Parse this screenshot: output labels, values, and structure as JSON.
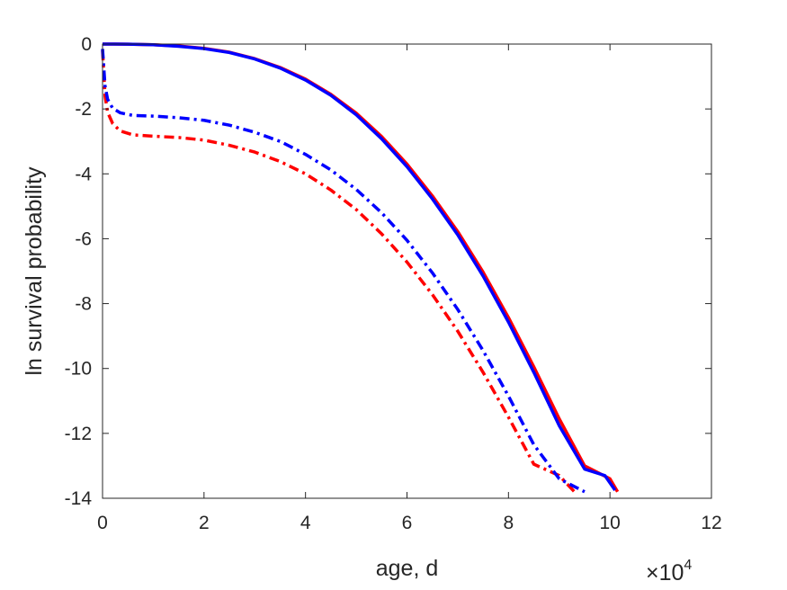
{
  "chart_data": {
    "type": "line",
    "xlabel": "age, d",
    "ylabel": "ln survival probability",
    "x_exponent": {
      "base": "×10",
      "power": "4"
    },
    "xlim": [
      0,
      120000
    ],
    "ylim": [
      -14,
      0
    ],
    "xticks": [
      0,
      20000,
      40000,
      60000,
      80000,
      100000,
      120000
    ],
    "xtick_labels": [
      "0",
      "2",
      "4",
      "6",
      "8",
      "10",
      "12"
    ],
    "yticks": [
      0,
      -2,
      -4,
      -6,
      -8,
      -10,
      -12,
      -14
    ],
    "ytick_labels": [
      "0",
      "-2",
      "-4",
      "-6",
      "-8",
      "-10",
      "-12",
      "-14"
    ],
    "grid": false,
    "box": true,
    "series": [
      {
        "color": "#ff0000",
        "style": "solid",
        "points": [
          [
            0,
            0
          ],
          [
            5000,
            -0.002
          ],
          [
            10000,
            -0.02
          ],
          [
            15000,
            -0.06
          ],
          [
            20000,
            -0.13
          ],
          [
            25000,
            -0.25
          ],
          [
            30000,
            -0.45
          ],
          [
            35000,
            -0.72
          ],
          [
            40000,
            -1.08
          ],
          [
            45000,
            -1.55
          ],
          [
            50000,
            -2.13
          ],
          [
            55000,
            -2.85
          ],
          [
            60000,
            -3.7
          ],
          [
            65000,
            -4.68
          ],
          [
            70000,
            -5.78
          ],
          [
            75000,
            -7.03
          ],
          [
            80000,
            -8.43
          ],
          [
            85000,
            -9.95
          ],
          [
            90000,
            -11.55
          ],
          [
            95000,
            -13.0
          ],
          [
            100000,
            -13.4
          ],
          [
            101500,
            -13.8
          ]
        ]
      },
      {
        "color": "#0000ff",
        "style": "solid",
        "points": [
          [
            0,
            0
          ],
          [
            5000,
            -0.003
          ],
          [
            10000,
            -0.02
          ],
          [
            15000,
            -0.07
          ],
          [
            20000,
            -0.14
          ],
          [
            25000,
            -0.26
          ],
          [
            30000,
            -0.46
          ],
          [
            35000,
            -0.74
          ],
          [
            40000,
            -1.11
          ],
          [
            45000,
            -1.58
          ],
          [
            50000,
            -2.18
          ],
          [
            55000,
            -2.92
          ],
          [
            60000,
            -3.78
          ],
          [
            65000,
            -4.77
          ],
          [
            70000,
            -5.88
          ],
          [
            75000,
            -7.15
          ],
          [
            80000,
            -8.57
          ],
          [
            85000,
            -10.12
          ],
          [
            90000,
            -11.76
          ],
          [
            95000,
            -13.1
          ],
          [
            99000,
            -13.3
          ],
          [
            101000,
            -13.75
          ]
        ]
      },
      {
        "color": "#ff0000",
        "style": "dash-dot",
        "points": [
          [
            0,
            -0.2
          ],
          [
            500,
            -1.6
          ],
          [
            1000,
            -2.1
          ],
          [
            2000,
            -2.45
          ],
          [
            3500,
            -2.68
          ],
          [
            6000,
            -2.8
          ],
          [
            10000,
            -2.84
          ],
          [
            15000,
            -2.88
          ],
          [
            20000,
            -2.96
          ],
          [
            25000,
            -3.12
          ],
          [
            30000,
            -3.33
          ],
          [
            35000,
            -3.62
          ],
          [
            40000,
            -4.0
          ],
          [
            45000,
            -4.5
          ],
          [
            50000,
            -5.1
          ],
          [
            55000,
            -5.85
          ],
          [
            60000,
            -6.72
          ],
          [
            65000,
            -7.72
          ],
          [
            70000,
            -8.85
          ],
          [
            75000,
            -10.12
          ],
          [
            80000,
            -11.5
          ],
          [
            85000,
            -12.95
          ],
          [
            90000,
            -13.3
          ],
          [
            93000,
            -13.8
          ]
        ]
      },
      {
        "color": "#0000ff",
        "style": "dash-dot",
        "points": [
          [
            0,
            -0.15
          ],
          [
            500,
            -1.3
          ],
          [
            1000,
            -1.7
          ],
          [
            2000,
            -1.98
          ],
          [
            3500,
            -2.12
          ],
          [
            6000,
            -2.2
          ],
          [
            10000,
            -2.22
          ],
          [
            15000,
            -2.27
          ],
          [
            20000,
            -2.35
          ],
          [
            25000,
            -2.5
          ],
          [
            30000,
            -2.72
          ],
          [
            35000,
            -3.0
          ],
          [
            40000,
            -3.4
          ],
          [
            45000,
            -3.88
          ],
          [
            50000,
            -4.48
          ],
          [
            55000,
            -5.2
          ],
          [
            60000,
            -6.05
          ],
          [
            65000,
            -7.05
          ],
          [
            70000,
            -8.18
          ],
          [
            75000,
            -9.45
          ],
          [
            80000,
            -10.85
          ],
          [
            85000,
            -12.35
          ],
          [
            90000,
            -13.4
          ],
          [
            95000,
            -13.8
          ]
        ]
      }
    ]
  }
}
